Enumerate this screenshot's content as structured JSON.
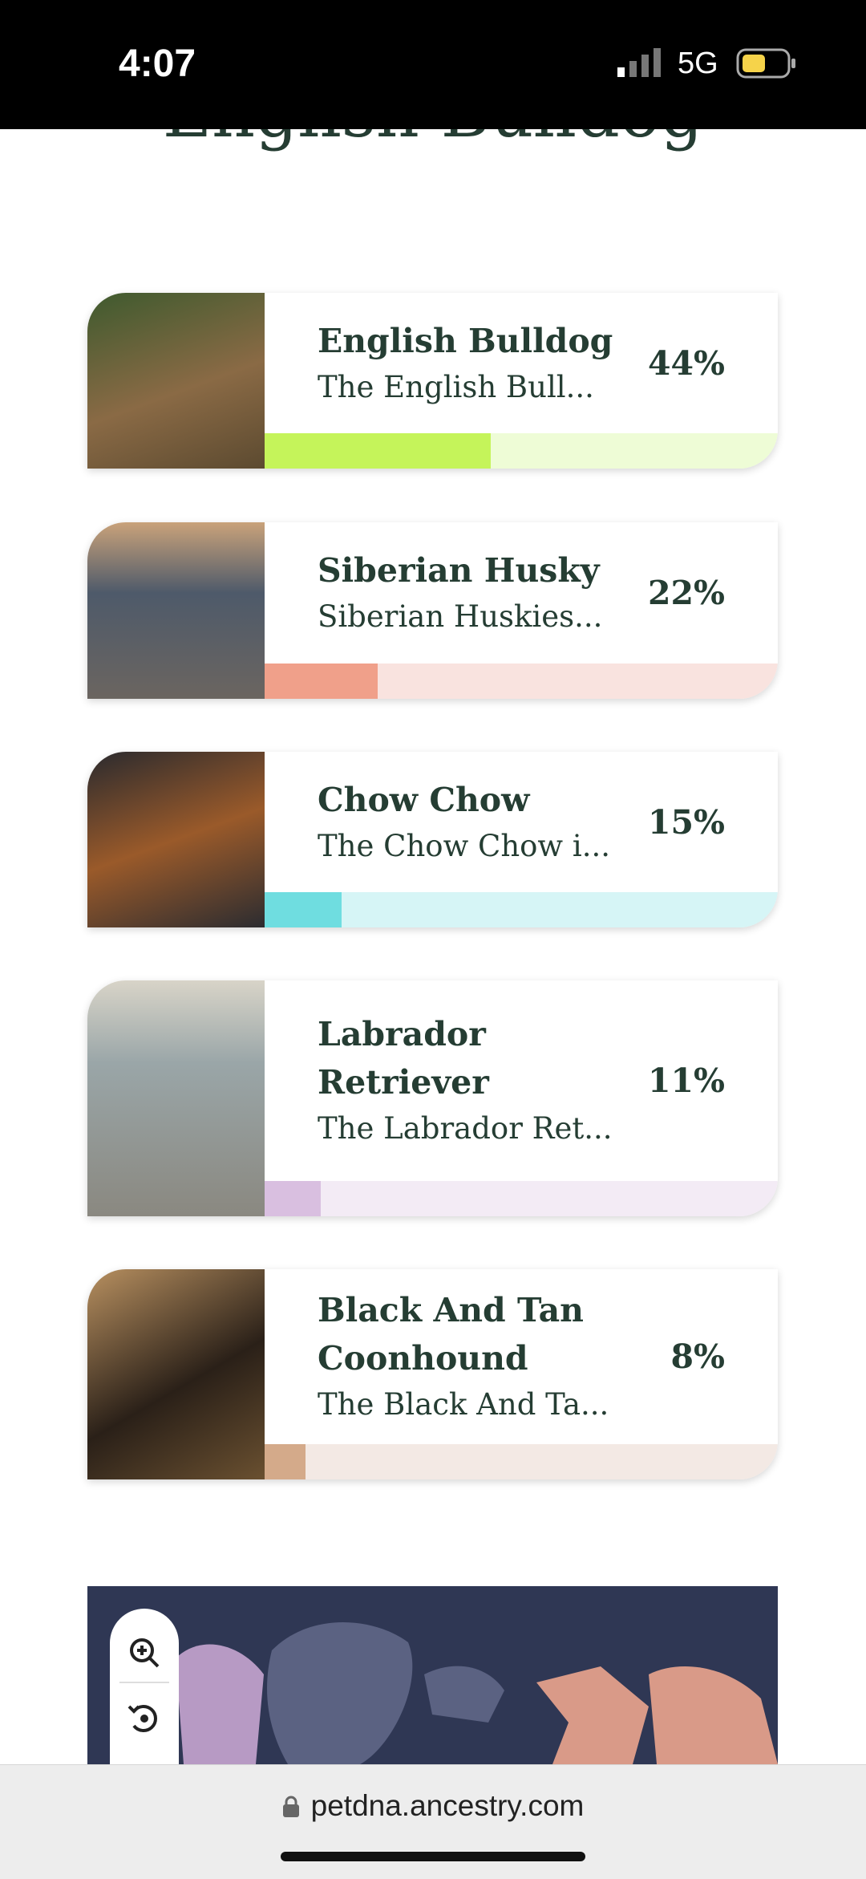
{
  "status_bar": {
    "time": "4:07",
    "network": "5G"
  },
  "heading": "English Bulldog",
  "cards": [
    {
      "name": "English Bulldog",
      "description": "The English Bull...",
      "value": 44,
      "value_label": "44%"
    },
    {
      "name": "Siberian Husky",
      "description": "Siberian Huskies...",
      "value": 22,
      "value_label": "22%"
    },
    {
      "name": "Chow Chow",
      "description": "The Chow Chow i...",
      "value": 15,
      "value_label": "15%"
    },
    {
      "name": "Labrador Retriever",
      "description": "The Labrador Ret...",
      "value": 11,
      "value_label": "11%"
    },
    {
      "name": "Black And Tan Coonhound",
      "description": "The Black And Ta...",
      "value": 8,
      "value_label": "8%"
    }
  ],
  "browser": {
    "url": "petdna.ancestry.com"
  }
}
